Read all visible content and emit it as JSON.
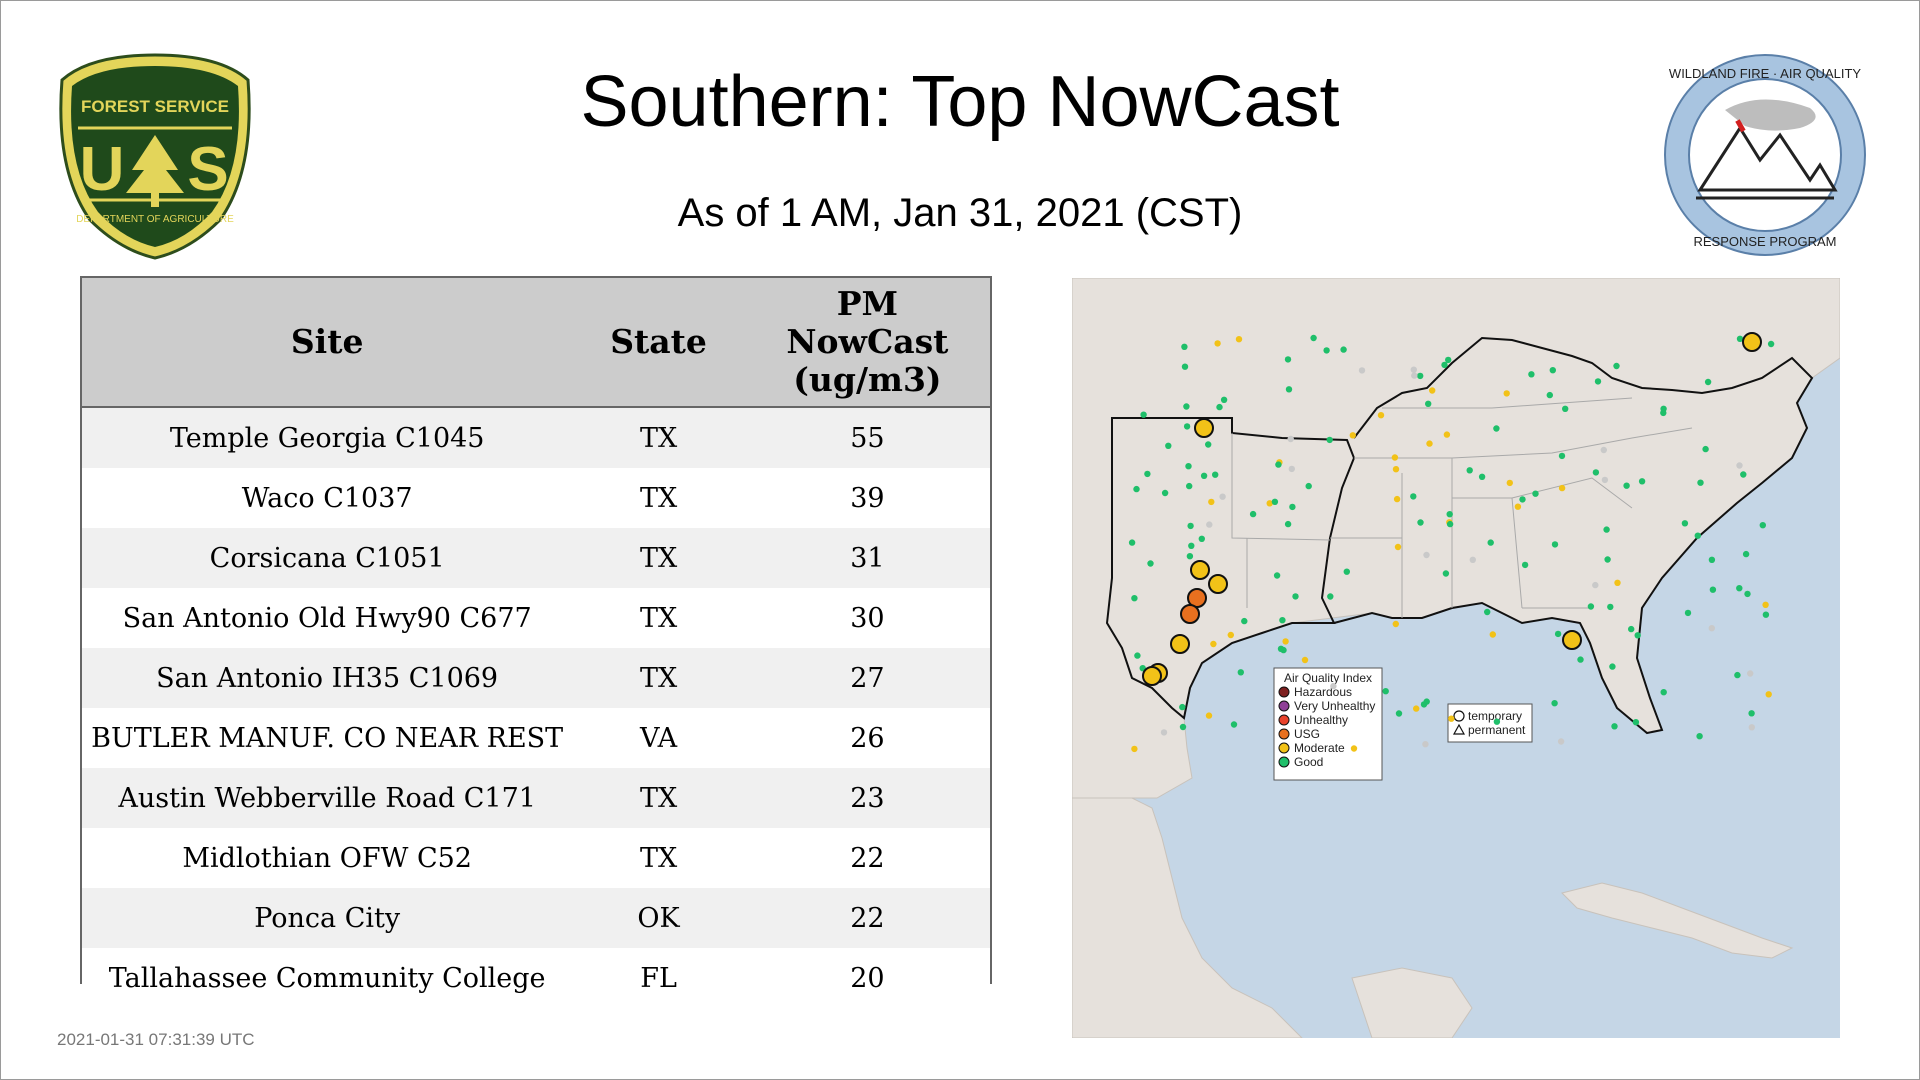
{
  "title": "Southern: Top NowCast",
  "subtitle": "As of  1 AM, Jan 31, 2021 (CST)",
  "timestamp": "2021-01-31 07:31:39 UTC",
  "logo_left": {
    "icon": "forest-service-shield-icon",
    "text_top": "FOREST SERVICE",
    "text_mid_left": "U",
    "text_mid_right": "S",
    "text_bottom": "DEPARTMENT OF AGRICULTURE"
  },
  "logo_right": {
    "icon": "wildland-fire-air-quality-icon",
    "text_top": "WILDLAND FIRE · AIR QUALITY",
    "text_bottom": "RESPONSE PROGRAM"
  },
  "table": {
    "headers": {
      "site": "Site",
      "state": "State",
      "value_line1": "PM",
      "value_line2": "NowCast",
      "value_line3": "(ug/m3)"
    },
    "rows": [
      {
        "site": "Temple Georgia C1045",
        "state": "TX",
        "value": "55"
      },
      {
        "site": "Waco C1037",
        "state": "TX",
        "value": "39"
      },
      {
        "site": "Corsicana C1051",
        "state": "TX",
        "value": "31"
      },
      {
        "site": "San Antonio Old Hwy90 C677",
        "state": "TX",
        "value": "30"
      },
      {
        "site": "San Antonio IH35 C1069",
        "state": "TX",
        "value": "27"
      },
      {
        "site": "BUTLER MANUF. CO NEAR REST",
        "state": "VA",
        "value": "26"
      },
      {
        "site": "Austin Webberville Road C171",
        "state": "TX",
        "value": "23"
      },
      {
        "site": "Midlothian OFW C52",
        "state": "TX",
        "value": "22"
      },
      {
        "site": "Ponca City",
        "state": "OK",
        "value": "22"
      },
      {
        "site": "Tallahassee Community College",
        "state": "FL",
        "value": "20"
      }
    ]
  },
  "map": {
    "colors": {
      "ocean": "#c5d6e6",
      "land": "#e6e1dc",
      "hazardous": "#7e2020",
      "very_unhealthy": "#8f3f97",
      "unhealthy": "#e8422b",
      "usg": "#e8701f",
      "moderate": "#f2c218",
      "good": "#1fbf6a",
      "no_data": "#c9c9c9"
    },
    "legend": {
      "title": "Air Quality Index",
      "items": [
        {
          "label": "Hazardous",
          "color": "#7e2020"
        },
        {
          "label": "Very Unhealthy",
          "color": "#8f3f97"
        },
        {
          "label": "Unhealthy",
          "color": "#e8422b"
        },
        {
          "label": "USG",
          "color": "#e8701f"
        },
        {
          "label": "Moderate",
          "color": "#f2c218"
        },
        {
          "label": "Good",
          "color": "#1fbf6a"
        }
      ]
    },
    "monitor_legend": {
      "temporary": "temporary",
      "permanent": "permanent"
    }
  }
}
